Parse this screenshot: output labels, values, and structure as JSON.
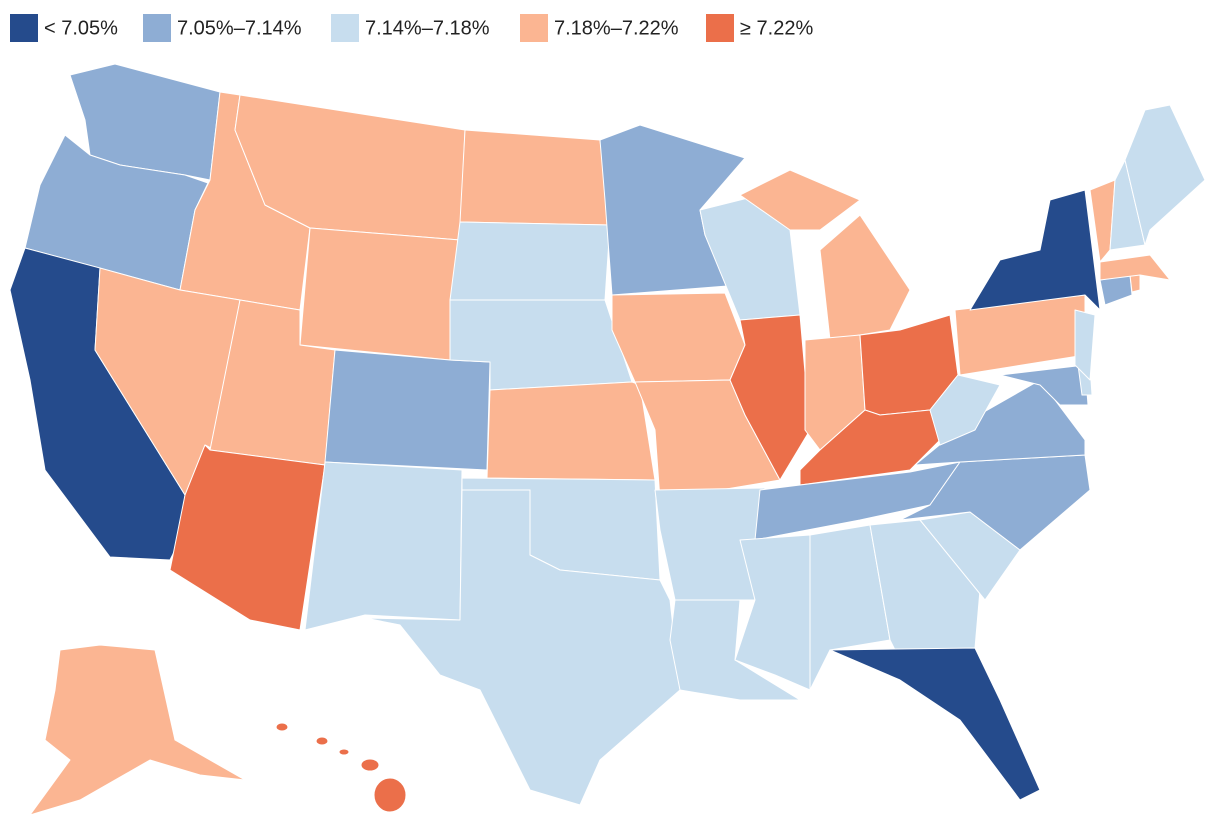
{
  "legend": [
    {
      "label": "< 7.05%",
      "color": "#254b8c"
    },
    {
      "label": "7.05%–7.14%",
      "color": "#8eadd4"
    },
    {
      "label": "7.14%–7.18%",
      "color": "#c7ddee"
    },
    {
      "label": "7.18%–7.22%",
      "color": "#fbb592"
    },
    {
      "label": "≥ 7.22%",
      "color": "#eb6f4a"
    }
  ],
  "regions": [
    1,
    1,
    0,
    3,
    3,
    3,
    3,
    3,
    4,
    1,
    2,
    3,
    2,
    2,
    3,
    2,
    2,
    1,
    3,
    3,
    2,
    2,
    2,
    4,
    3,
    3,
    4,
    4,
    1,
    2,
    2,
    2,
    0,
    2,
    1,
    1,
    2,
    3,
    0,
    1,
    2,
    2,
    1,
    3,
    3,
    3,
    2,
    2,
    3,
    4
  ]
}
